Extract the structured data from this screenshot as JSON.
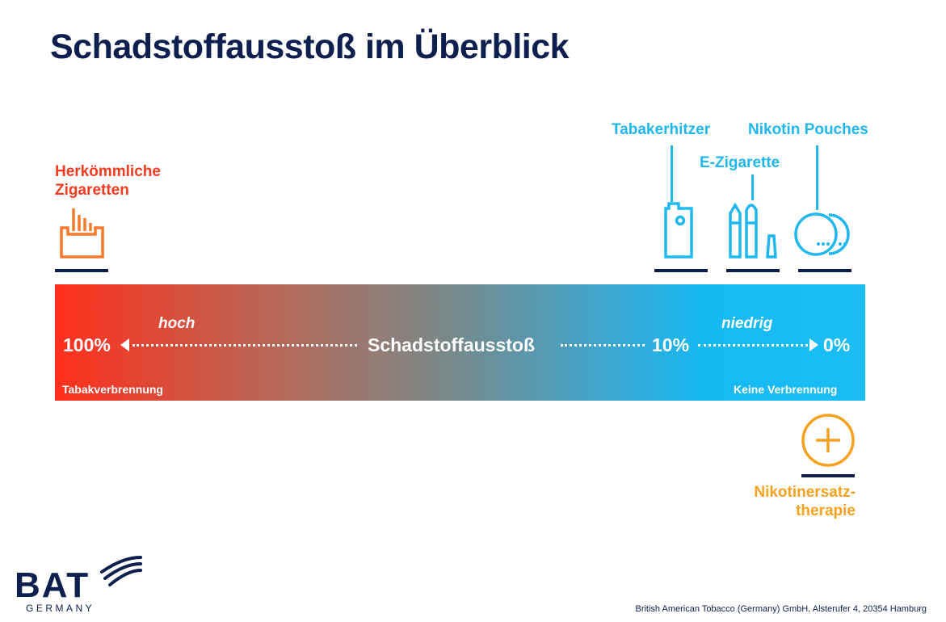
{
  "title": "Schadstoffausstoß im Überblick",
  "products": {
    "cigarettes": "Herkömmliche\nZigaretten",
    "heater": "Tabakerhitzer",
    "ecig": "E-Zigarette",
    "pouches": "Nikotin Pouches",
    "nrt": "Nikotinersatz-\ntherapie"
  },
  "scale": {
    "left_value": "100%",
    "high": "hoch",
    "center": "Schadstoffausstoß",
    "mid_value": "10%",
    "low": "niedrig",
    "right_value": "0%",
    "left_caption": "Tabakverbrennung",
    "right_caption": "Keine Verbrennung"
  },
  "colors": {
    "navy": "#0e1f4f",
    "red": "#f23b21",
    "orange_icon": "#f47a2c",
    "blue": "#1fb7ee",
    "nrt_orange": "#f6a21e"
  },
  "icons": [
    "cigarette-pack-icon",
    "tobacco-heater-icon",
    "e-cigarette-icon",
    "nicotine-pouch-icon",
    "plus-circle-icon"
  ],
  "logo": {
    "name": "BAT",
    "sub": "GERMANY"
  },
  "footer": "British American Tobacco (Germany) GmbH, Alsterufer 4, 20354 Hamburg"
}
